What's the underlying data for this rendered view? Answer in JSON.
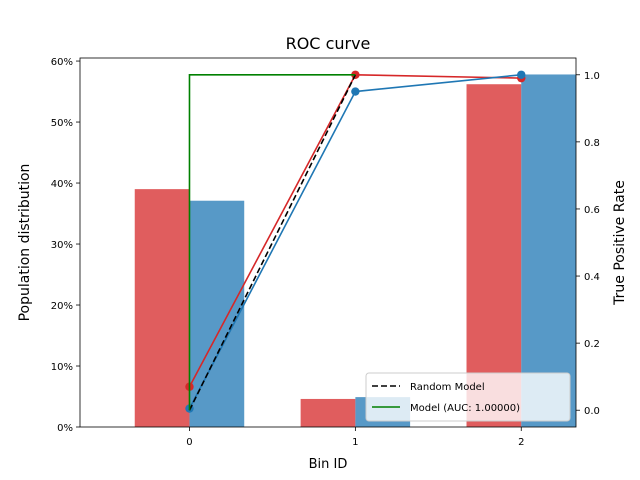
{
  "chart_data": {
    "type": "bar",
    "title": "ROC curve",
    "xlabel": "Bin ID",
    "ylabel_left": "Population distribution",
    "ylabel_right": "True Positive Rate",
    "categories": [
      "0",
      "1",
      "2"
    ],
    "ylim_left": [
      0,
      0.605
    ],
    "ylim_right": [
      -0.05,
      1.05
    ],
    "left_ticks": [
      0,
      0.1,
      0.2,
      0.3,
      0.4,
      0.5,
      0.6
    ],
    "left_tick_labels": [
      "0%",
      "10%",
      "20%",
      "30%",
      "40%",
      "50%",
      "60%"
    ],
    "right_ticks": [
      0.0,
      0.2,
      0.4,
      0.6,
      0.8,
      1.0
    ],
    "right_tick_labels": [
      "0.0",
      "0.2",
      "0.4",
      "0.6",
      "0.8",
      "1.0"
    ],
    "bar_series": [
      {
        "color": "#d62728",
        "values": [
          0.39,
          0.046,
          0.562
        ]
      },
      {
        "color": "#1f77b4",
        "values": [
          0.371,
          0.049,
          0.578
        ]
      }
    ],
    "line_series": [
      {
        "color": "#d62728",
        "x": [
          0,
          1,
          2
        ],
        "y": [
          0.07,
          1.0,
          0.99
        ],
        "markers": true
      },
      {
        "color": "#1f77b4",
        "x": [
          0,
          1,
          2
        ],
        "y": [
          0.005,
          0.95,
          1.0
        ],
        "markers": true
      },
      {
        "name": "Random Model",
        "color": "#000000",
        "dashed": true,
        "x": [
          0,
          1
        ],
        "y": [
          0.0,
          1.0
        ]
      },
      {
        "name": "Model (AUC: 1.00000)",
        "color": "#008000",
        "x": [
          0,
          0,
          1
        ],
        "y": [
          0.0,
          1.0,
          1.0
        ]
      }
    ],
    "legend": {
      "position": "lower-right",
      "entries": [
        {
          "label": "Random Model",
          "color": "#000000",
          "dashed": true
        },
        {
          "label": "Model (AUC: 1.00000)",
          "color": "#008000",
          "dashed": false
        }
      ]
    },
    "grid": false
  }
}
